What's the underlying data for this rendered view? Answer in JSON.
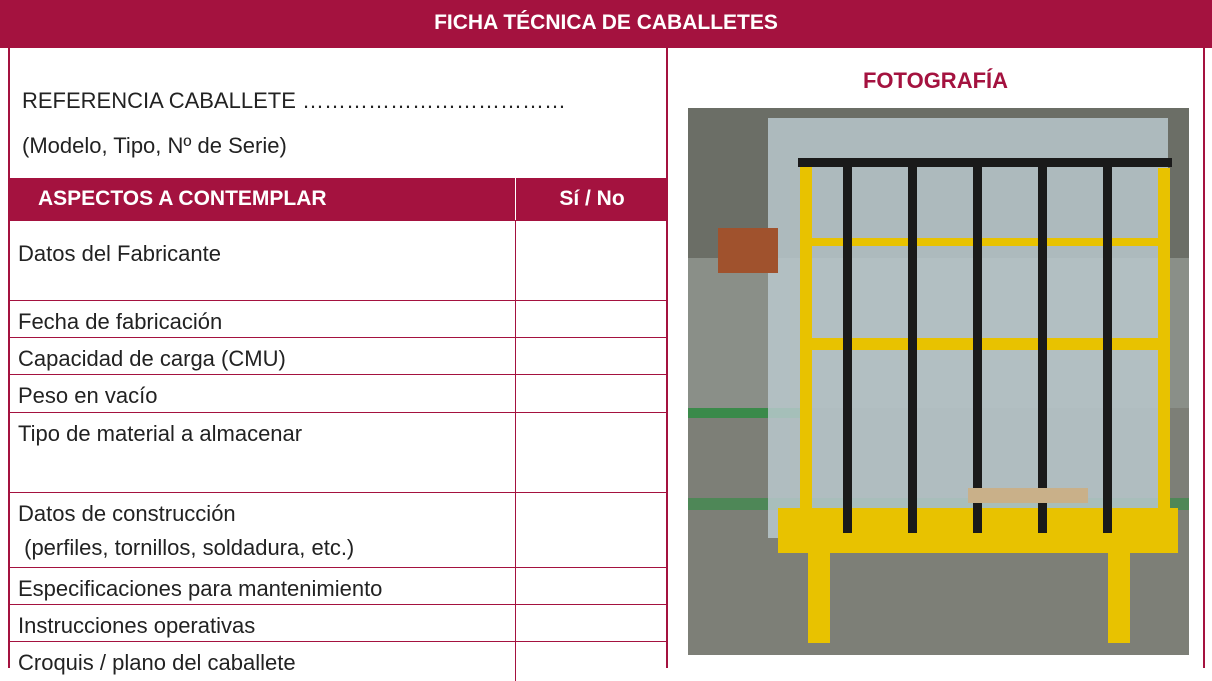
{
  "header": {
    "title": "FICHA TÉCNICA DE CABALLETES"
  },
  "reference": "REFERENCIA CABALLETE ………………………………",
  "reference_note": "(Modelo, Tipo, Nº de Serie)",
  "table": {
    "columns": [
      "ASPECTOS A CONTEMPLAR",
      "Sí / No"
    ],
    "rows": [
      [
        "Datos del Fabricante"
      ],
      [
        "Fecha de fabricación"
      ],
      [
        "Capacidad de carga (CMU)"
      ],
      [
        "Peso en vacío"
      ],
      [
        "Tipo de material a almacenar"
      ],
      [
        "Datos de construcción",
        " (perfiles, tornillos, soldadura, etc.)"
      ],
      [
        "Especificaciones para mantenimiento"
      ],
      [
        "Instrucciones operativas"
      ],
      [
        "Croquis / plano del caballete"
      ]
    ]
  },
  "photo_title": "FOTOGRAFÍA"
}
